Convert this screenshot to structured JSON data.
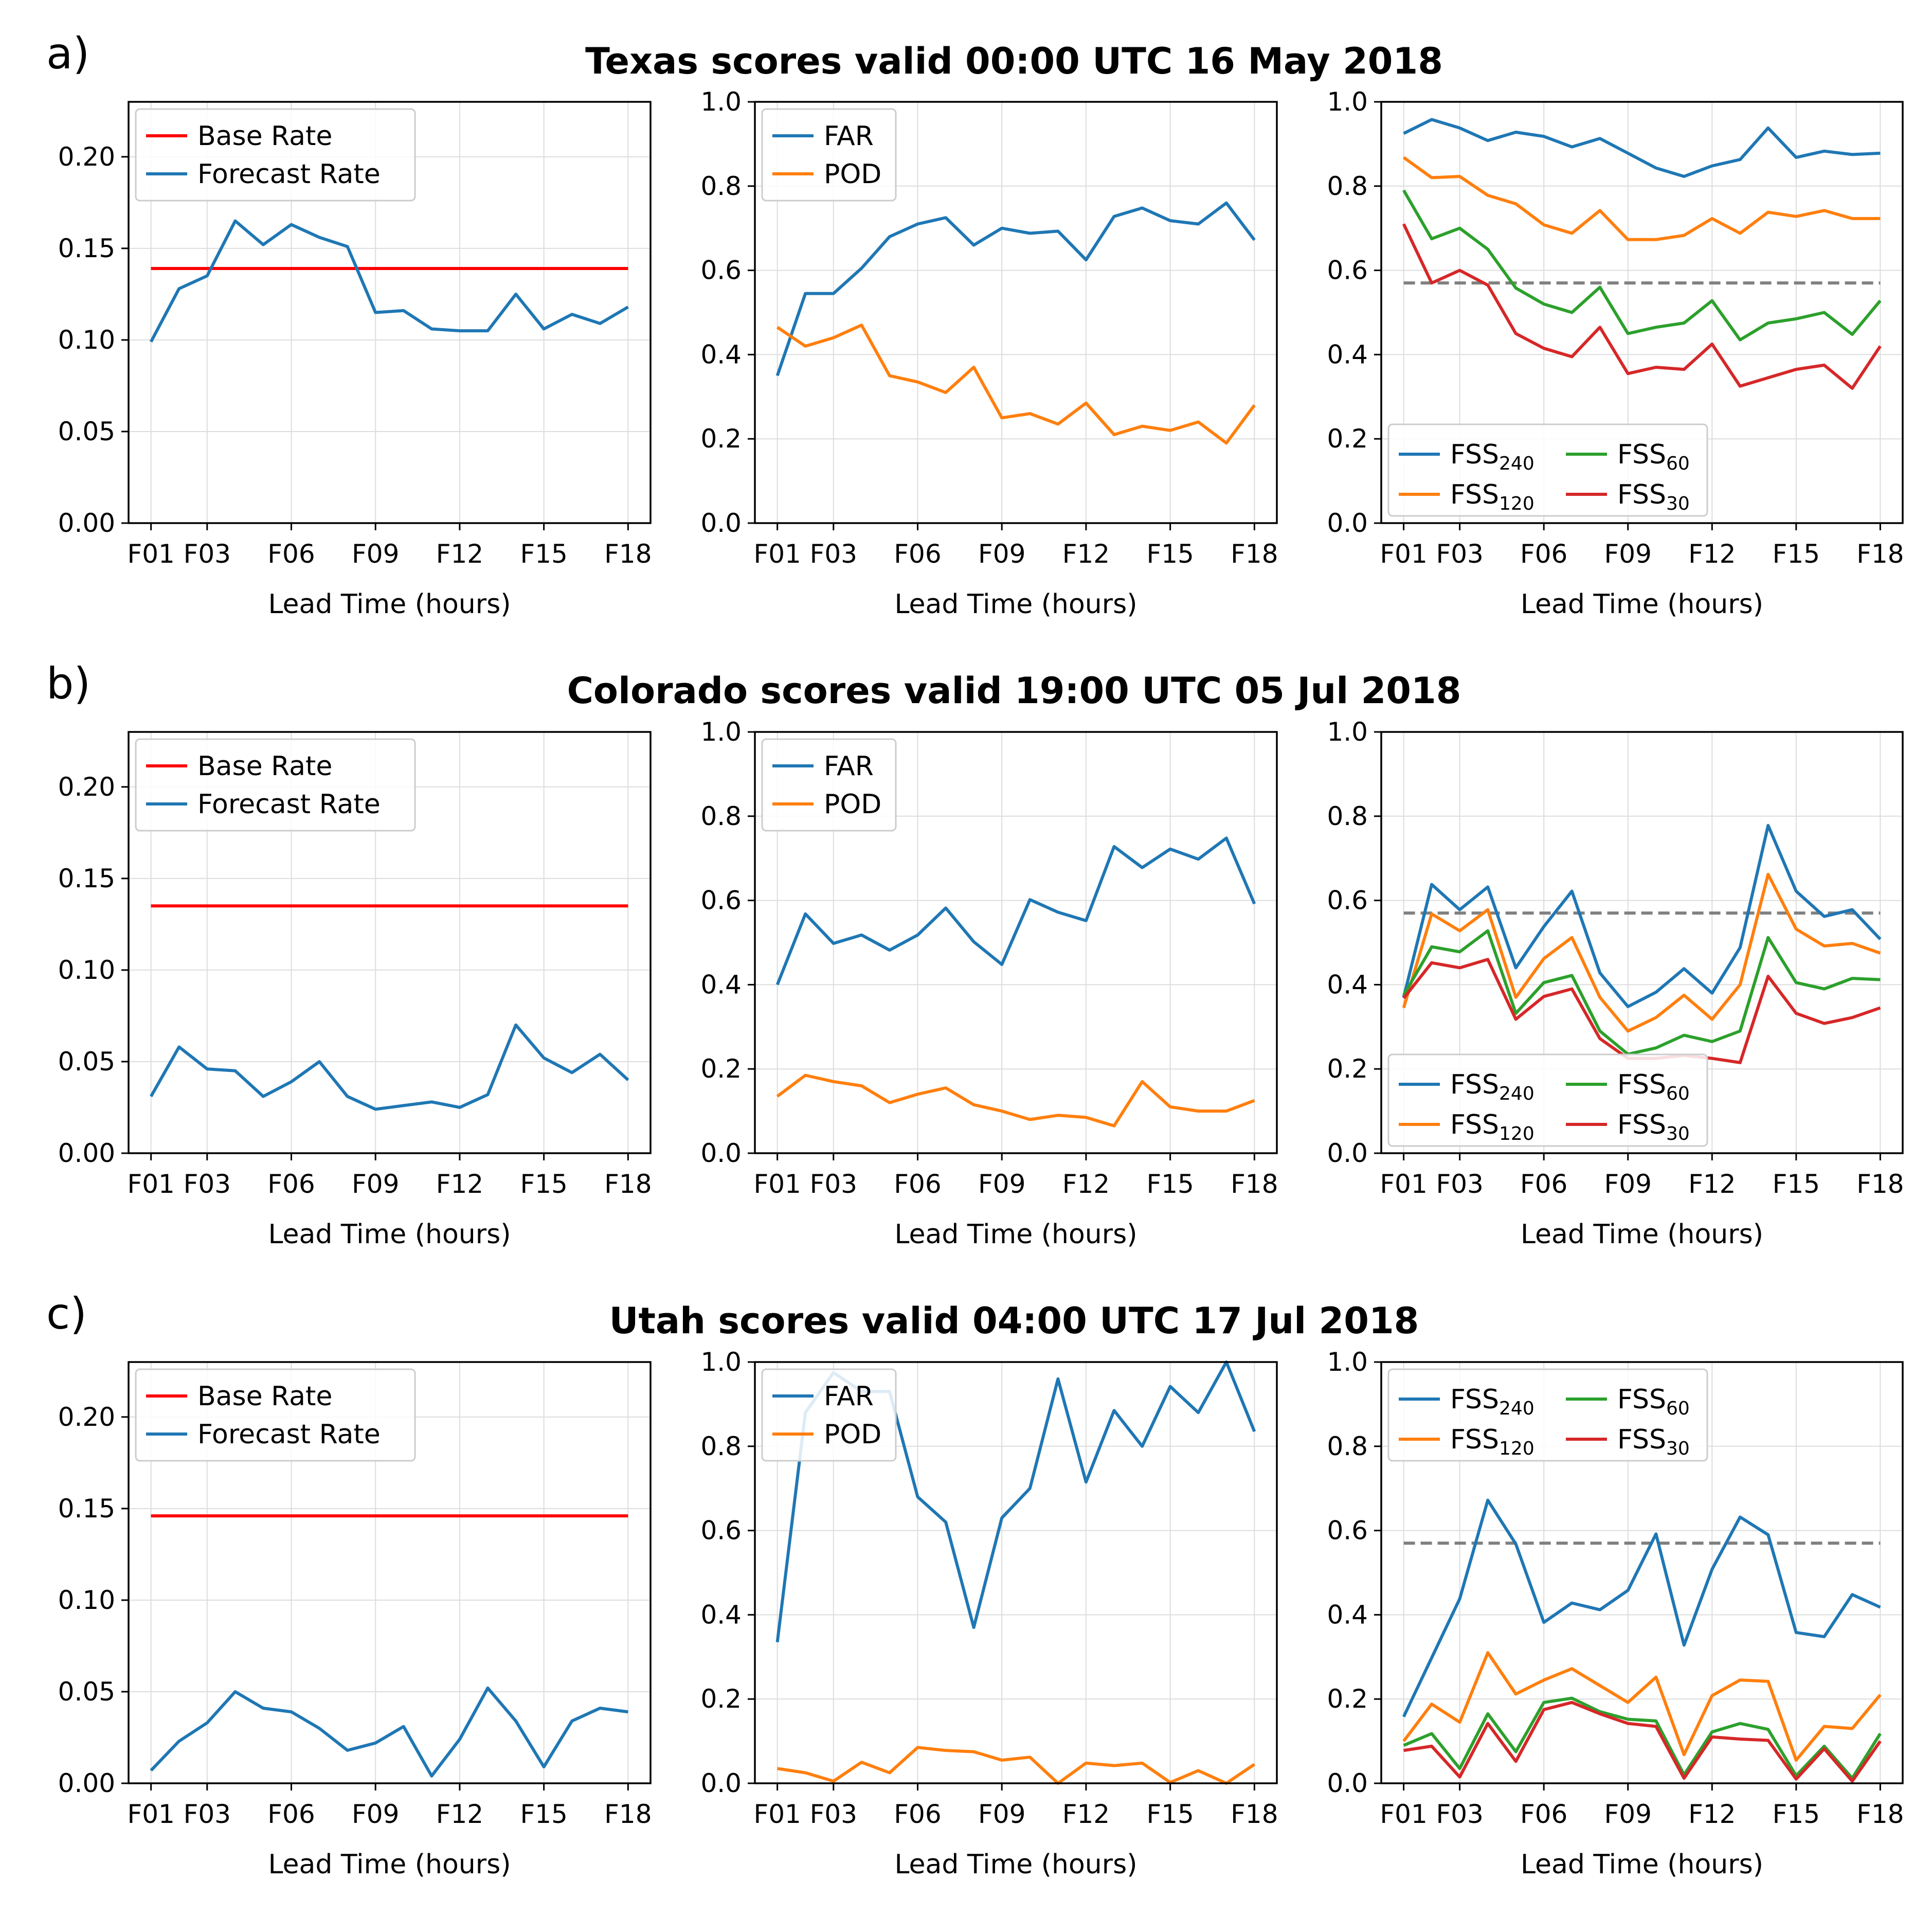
{
  "figure": {
    "rows": [
      {
        "panel_label": "a)",
        "title": "Texas scores valid 00:00 UTC 16 May 2018"
      },
      {
        "panel_label": "b)",
        "title": "Colorado scores valid 19:00 UTC 05 Jul 2018"
      },
      {
        "panel_label": "c)",
        "title": "Utah scores valid 04:00 UTC 17 Jul 2018"
      }
    ]
  },
  "colors": {
    "base_rate": "#ff0000",
    "blue": "#1f77b4",
    "orange": "#ff7f0e",
    "green": "#2ca02c",
    "red": "#d62728",
    "threshold": "#808080",
    "grid": "#dddddd"
  },
  "chart_data": [
    {
      "row": 0,
      "col": 0,
      "type": "line",
      "xlabel": "Lead Time (hours)",
      "x": [
        1,
        2,
        3,
        4,
        5,
        6,
        7,
        8,
        9,
        10,
        11,
        12,
        13,
        14,
        15,
        16,
        17,
        18
      ],
      "xticks": [
        "F01",
        "F03",
        "F06",
        "F09",
        "F12",
        "F15",
        "F18"
      ],
      "xtick_values": [
        1,
        3,
        6,
        9,
        12,
        15,
        18
      ],
      "ylim": [
        0,
        0.23
      ],
      "yticks": [
        "0.00",
        "0.05",
        "0.10",
        "0.15",
        "0.20"
      ],
      "ytick_values": [
        0,
        0.05,
        0.1,
        0.15,
        0.2
      ],
      "grid": true,
      "legend": "upper-left",
      "series": [
        {
          "name": "Base Rate",
          "color": "base_rate",
          "values": [
            0.139,
            0.139,
            0.139,
            0.139,
            0.139,
            0.139,
            0.139,
            0.139,
            0.139,
            0.139,
            0.139,
            0.139,
            0.139,
            0.139,
            0.139,
            0.139,
            0.139,
            0.139
          ]
        },
        {
          "name": "Forecast Rate",
          "color": "blue",
          "values": [
            0.099,
            0.128,
            0.135,
            0.165,
            0.152,
            0.163,
            0.156,
            0.151,
            0.115,
            0.116,
            0.106,
            0.105,
            0.105,
            0.125,
            0.106,
            0.114,
            0.109,
            0.118
          ]
        }
      ]
    },
    {
      "row": 0,
      "col": 1,
      "type": "line",
      "xlabel": "Lead Time (hours)",
      "x": [
        1,
        2,
        3,
        4,
        5,
        6,
        7,
        8,
        9,
        10,
        11,
        12,
        13,
        14,
        15,
        16,
        17,
        18
      ],
      "xticks": [
        "F01",
        "F03",
        "F06",
        "F09",
        "F12",
        "F15",
        "F18"
      ],
      "xtick_values": [
        1,
        3,
        6,
        9,
        12,
        15,
        18
      ],
      "ylim": [
        0,
        1.0
      ],
      "yticks": [
        "0.0",
        "0.2",
        "0.4",
        "0.6",
        "0.8",
        "1.0"
      ],
      "ytick_values": [
        0,
        0.2,
        0.4,
        0.6,
        0.8,
        1.0
      ],
      "grid": true,
      "legend": "upper-left",
      "series": [
        {
          "name": "FAR",
          "color": "blue",
          "values": [
            0.35,
            0.545,
            0.545,
            0.605,
            0.68,
            0.71,
            0.725,
            0.66,
            0.7,
            0.688,
            0.693,
            0.625,
            0.728,
            0.748,
            0.718,
            0.71,
            0.76,
            0.672
          ]
        },
        {
          "name": "POD",
          "color": "orange",
          "values": [
            0.465,
            0.42,
            0.44,
            0.47,
            0.35,
            0.335,
            0.31,
            0.37,
            0.25,
            0.26,
            0.235,
            0.285,
            0.21,
            0.23,
            0.22,
            0.24,
            0.19,
            0.28
          ]
        }
      ]
    },
    {
      "row": 0,
      "col": 2,
      "type": "line",
      "xlabel": "Lead Time (hours)",
      "x": [
        1,
        2,
        3,
        4,
        5,
        6,
        7,
        8,
        9,
        10,
        11,
        12,
        13,
        14,
        15,
        16,
        17,
        18
      ],
      "xticks": [
        "F01",
        "F03",
        "F06",
        "F09",
        "F12",
        "F15",
        "F18"
      ],
      "xtick_values": [
        1,
        3,
        6,
        9,
        12,
        15,
        18
      ],
      "ylim": [
        0,
        1.0
      ],
      "yticks": [
        "0.0",
        "0.2",
        "0.4",
        "0.6",
        "0.8",
        "1.0"
      ],
      "ytick_values": [
        0,
        0.2,
        0.4,
        0.6,
        0.8,
        1.0
      ],
      "grid": true,
      "legend": "lower-left",
      "threshold": 0.57,
      "series": [
        {
          "name": "FSS",
          "sub": "240",
          "color": "blue",
          "values": [
            0.925,
            0.958,
            0.938,
            0.908,
            0.928,
            0.918,
            0.893,
            0.913,
            0.878,
            0.843,
            0.823,
            0.848,
            0.863,
            0.938,
            0.868,
            0.883,
            0.875,
            0.878
          ]
        },
        {
          "name": "FSS",
          "sub": "120",
          "color": "orange",
          "values": [
            0.868,
            0.82,
            0.823,
            0.778,
            0.758,
            0.708,
            0.688,
            0.742,
            0.673,
            0.673,
            0.683,
            0.723,
            0.688,
            0.738,
            0.728,
            0.742,
            0.723,
            0.723
          ]
        },
        {
          "name": "FSS",
          "sub": "60",
          "color": "green",
          "values": [
            0.79,
            0.675,
            0.7,
            0.65,
            0.558,
            0.52,
            0.5,
            0.56,
            0.45,
            0.465,
            0.475,
            0.528,
            0.435,
            0.475,
            0.485,
            0.5,
            0.448,
            0.528
          ]
        },
        {
          "name": "FSS",
          "sub": "30",
          "color": "red",
          "values": [
            0.71,
            0.57,
            0.6,
            0.565,
            0.45,
            0.415,
            0.395,
            0.465,
            0.355,
            0.37,
            0.365,
            0.425,
            0.325,
            0.345,
            0.365,
            0.375,
            0.32,
            0.42
          ]
        }
      ]
    },
    {
      "row": 1,
      "col": 0,
      "type": "line",
      "xlabel": "Lead Time (hours)",
      "x": [
        1,
        2,
        3,
        4,
        5,
        6,
        7,
        8,
        9,
        10,
        11,
        12,
        13,
        14,
        15,
        16,
        17,
        18
      ],
      "xticks": [
        "F01",
        "F03",
        "F06",
        "F09",
        "F12",
        "F15",
        "F18"
      ],
      "xtick_values": [
        1,
        3,
        6,
        9,
        12,
        15,
        18
      ],
      "ylim": [
        0,
        0.23
      ],
      "yticks": [
        "0.00",
        "0.05",
        "0.10",
        "0.15",
        "0.20"
      ],
      "ytick_values": [
        0,
        0.05,
        0.1,
        0.15,
        0.2
      ],
      "grid": true,
      "legend": "upper-left",
      "series": [
        {
          "name": "Base Rate",
          "color": "base_rate",
          "values": [
            0.135,
            0.135,
            0.135,
            0.135,
            0.135,
            0.135,
            0.135,
            0.135,
            0.135,
            0.135,
            0.135,
            0.135,
            0.135,
            0.135,
            0.135,
            0.135,
            0.135,
            0.135
          ]
        },
        {
          "name": "Forecast Rate",
          "color": "blue",
          "values": [
            0.031,
            0.058,
            0.046,
            0.045,
            0.031,
            0.039,
            0.05,
            0.031,
            0.024,
            0.026,
            0.028,
            0.025,
            0.032,
            0.07,
            0.052,
            0.044,
            0.054,
            0.04
          ]
        }
      ]
    },
    {
      "row": 1,
      "col": 1,
      "type": "line",
      "xlabel": "Lead Time (hours)",
      "x": [
        1,
        2,
        3,
        4,
        5,
        6,
        7,
        8,
        9,
        10,
        11,
        12,
        13,
        14,
        15,
        16,
        17,
        18
      ],
      "xticks": [
        "F01",
        "F03",
        "F06",
        "F09",
        "F12",
        "F15",
        "F18"
      ],
      "xtick_values": [
        1,
        3,
        6,
        9,
        12,
        15,
        18
      ],
      "ylim": [
        0,
        1.0
      ],
      "yticks": [
        "0.0",
        "0.2",
        "0.4",
        "0.6",
        "0.8",
        "1.0"
      ],
      "ytick_values": [
        0,
        0.2,
        0.4,
        0.6,
        0.8,
        1.0
      ],
      "grid": true,
      "legend": "upper-left",
      "series": [
        {
          "name": "FAR",
          "color": "blue",
          "values": [
            0.4,
            0.568,
            0.498,
            0.518,
            0.482,
            0.518,
            0.582,
            0.502,
            0.448,
            0.602,
            0.572,
            0.552,
            0.728,
            0.678,
            0.722,
            0.698,
            0.748,
            0.592
          ]
        },
        {
          "name": "POD",
          "color": "orange",
          "values": [
            0.135,
            0.185,
            0.17,
            0.16,
            0.12,
            0.14,
            0.155,
            0.115,
            0.1,
            0.08,
            0.09,
            0.085,
            0.065,
            0.17,
            0.11,
            0.1,
            0.1,
            0.125
          ]
        }
      ]
    },
    {
      "row": 1,
      "col": 2,
      "type": "line",
      "xlabel": "Lead Time (hours)",
      "x": [
        1,
        2,
        3,
        4,
        5,
        6,
        7,
        8,
        9,
        10,
        11,
        12,
        13,
        14,
        15,
        16,
        17,
        18
      ],
      "xticks": [
        "F01",
        "F03",
        "F06",
        "F09",
        "F12",
        "F15",
        "F18"
      ],
      "xtick_values": [
        1,
        3,
        6,
        9,
        12,
        15,
        18
      ],
      "ylim": [
        0,
        1.0
      ],
      "yticks": [
        "0.0",
        "0.2",
        "0.4",
        "0.6",
        "0.8",
        "1.0"
      ],
      "ytick_values": [
        0,
        0.2,
        0.4,
        0.6,
        0.8,
        1.0
      ],
      "grid": true,
      "legend": "lower-left",
      "threshold": 0.57,
      "series": [
        {
          "name": "FSS",
          "sub": "240",
          "color": "blue",
          "values": [
            0.37,
            0.638,
            0.578,
            0.632,
            0.44,
            0.538,
            0.622,
            0.428,
            0.348,
            0.382,
            0.438,
            0.38,
            0.488,
            0.778,
            0.622,
            0.562,
            0.578,
            0.508
          ]
        },
        {
          "name": "FSS",
          "sub": "120",
          "color": "orange",
          "values": [
            0.345,
            0.568,
            0.528,
            0.578,
            0.37,
            0.462,
            0.512,
            0.37,
            0.29,
            0.322,
            0.375,
            0.318,
            0.4,
            0.662,
            0.532,
            0.492,
            0.498,
            0.475
          ]
        },
        {
          "name": "FSS",
          "sub": "60",
          "color": "green",
          "values": [
            0.375,
            0.49,
            0.478,
            0.528,
            0.332,
            0.405,
            0.422,
            0.29,
            0.235,
            0.25,
            0.28,
            0.265,
            0.29,
            0.512,
            0.405,
            0.39,
            0.415,
            0.412
          ]
        },
        {
          "name": "FSS",
          "sub": "30",
          "color": "red",
          "values": [
            0.368,
            0.452,
            0.44,
            0.46,
            0.318,
            0.372,
            0.39,
            0.272,
            0.225,
            0.225,
            0.232,
            0.225,
            0.215,
            0.42,
            0.332,
            0.308,
            0.322,
            0.345
          ]
        }
      ]
    },
    {
      "row": 2,
      "col": 0,
      "type": "line",
      "xlabel": "Lead Time (hours)",
      "x": [
        1,
        2,
        3,
        4,
        5,
        6,
        7,
        8,
        9,
        10,
        11,
        12,
        13,
        14,
        15,
        16,
        17,
        18
      ],
      "xticks": [
        "F01",
        "F03",
        "F06",
        "F09",
        "F12",
        "F15",
        "F18"
      ],
      "xtick_values": [
        1,
        3,
        6,
        9,
        12,
        15,
        18
      ],
      "ylim": [
        0,
        0.23
      ],
      "yticks": [
        "0.00",
        "0.05",
        "0.10",
        "0.15",
        "0.20"
      ],
      "ytick_values": [
        0,
        0.05,
        0.1,
        0.15,
        0.2
      ],
      "grid": true,
      "legend": "upper-left",
      "series": [
        {
          "name": "Base Rate",
          "color": "base_rate",
          "values": [
            0.146,
            0.146,
            0.146,
            0.146,
            0.146,
            0.146,
            0.146,
            0.146,
            0.146,
            0.146,
            0.146,
            0.146,
            0.146,
            0.146,
            0.146,
            0.146,
            0.146,
            0.146
          ]
        },
        {
          "name": "Forecast Rate",
          "color": "blue",
          "values": [
            0.007,
            0.023,
            0.033,
            0.05,
            0.041,
            0.039,
            0.03,
            0.018,
            0.022,
            0.031,
            0.004,
            0.024,
            0.052,
            0.034,
            0.009,
            0.034,
            0.041,
            0.039
          ]
        }
      ]
    },
    {
      "row": 2,
      "col": 1,
      "type": "line",
      "xlabel": "Lead Time (hours)",
      "x": [
        1,
        2,
        3,
        4,
        5,
        6,
        7,
        8,
        9,
        10,
        11,
        12,
        13,
        14,
        15,
        16,
        17,
        18
      ],
      "xticks": [
        "F01",
        "F03",
        "F06",
        "F09",
        "F12",
        "F15",
        "F18"
      ],
      "xtick_values": [
        1,
        3,
        6,
        9,
        12,
        15,
        18
      ],
      "ylim": [
        0,
        1.0
      ],
      "yticks": [
        "0.0",
        "0.2",
        "0.4",
        "0.6",
        "0.8",
        "1.0"
      ],
      "ytick_values": [
        0,
        0.2,
        0.4,
        0.6,
        0.8,
        1.0
      ],
      "grid": true,
      "legend": "upper-left",
      "series": [
        {
          "name": "FAR",
          "color": "blue",
          "values": [
            0.335,
            0.88,
            0.975,
            0.93,
            0.93,
            0.68,
            0.62,
            0.37,
            0.63,
            0.7,
            0.96,
            0.715,
            0.885,
            0.8,
            0.942,
            0.88,
            1.0,
            0.835
          ]
        },
        {
          "name": "POD",
          "color": "orange",
          "values": [
            0.035,
            0.025,
            0.005,
            0.05,
            0.025,
            0.085,
            0.078,
            0.075,
            0.055,
            0.062,
            0.0,
            0.048,
            0.042,
            0.048,
            0.002,
            0.03,
            0.0,
            0.045
          ]
        }
      ]
    },
    {
      "row": 2,
      "col": 2,
      "type": "line",
      "xlabel": "Lead Time (hours)",
      "x": [
        1,
        2,
        3,
        4,
        5,
        6,
        7,
        8,
        9,
        10,
        11,
        12,
        13,
        14,
        15,
        16,
        17,
        18
      ],
      "xticks": [
        "F01",
        "F03",
        "F06",
        "F09",
        "F12",
        "F15",
        "F18"
      ],
      "xtick_values": [
        1,
        3,
        6,
        9,
        12,
        15,
        18
      ],
      "ylim": [
        0,
        1.0
      ],
      "yticks": [
        "0.0",
        "0.2",
        "0.4",
        "0.6",
        "0.8",
        "1.0"
      ],
      "ytick_values": [
        0,
        0.2,
        0.4,
        0.6,
        0.8,
        1.0
      ],
      "grid": true,
      "legend": "upper-left",
      "threshold": 0.57,
      "series": [
        {
          "name": "FSS",
          "sub": "240",
          "color": "blue",
          "values": [
            0.158,
            0.298,
            0.438,
            0.672,
            0.568,
            0.382,
            0.428,
            0.412,
            0.458,
            0.592,
            0.328,
            0.508,
            0.632,
            0.59,
            0.358,
            0.348,
            0.448,
            0.418
          ]
        },
        {
          "name": "FSS",
          "sub": "120",
          "color": "orange",
          "values": [
            0.1,
            0.188,
            0.145,
            0.31,
            0.212,
            0.245,
            0.272,
            0.232,
            0.192,
            0.252,
            0.068,
            0.208,
            0.245,
            0.242,
            0.055,
            0.135,
            0.13,
            0.21
          ]
        },
        {
          "name": "FSS",
          "sub": "60",
          "color": "green",
          "values": [
            0.09,
            0.118,
            0.035,
            0.165,
            0.075,
            0.192,
            0.202,
            0.17,
            0.152,
            0.148,
            0.02,
            0.122,
            0.142,
            0.128,
            0.018,
            0.088,
            0.012,
            0.118
          ]
        },
        {
          "name": "FSS",
          "sub": "30",
          "color": "red",
          "values": [
            0.078,
            0.088,
            0.015,
            0.142,
            0.052,
            0.175,
            0.192,
            0.165,
            0.142,
            0.135,
            0.012,
            0.11,
            0.105,
            0.102,
            0.01,
            0.082,
            0.005,
            0.1
          ]
        }
      ]
    }
  ]
}
